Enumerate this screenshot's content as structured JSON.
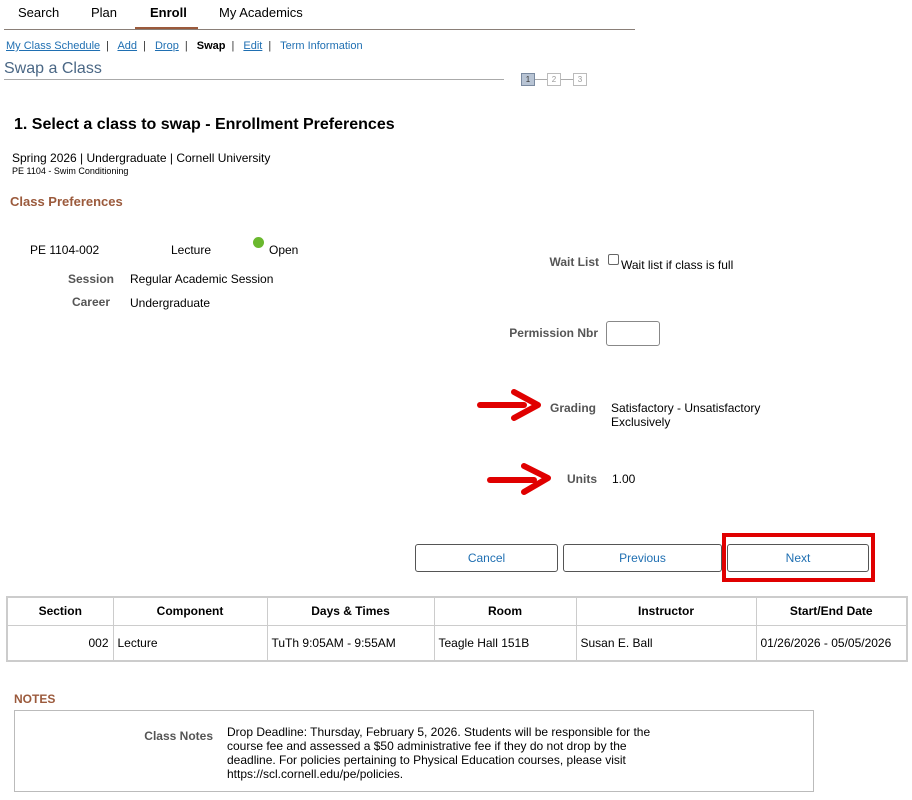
{
  "tabs": [
    {
      "label": "Search"
    },
    {
      "label": "Plan"
    },
    {
      "label": "Enroll",
      "active": true
    },
    {
      "label": "My Academics"
    }
  ],
  "subnav": [
    "My Class Schedule",
    "Add",
    "Drop",
    "Swap",
    "Edit",
    "Term Information"
  ],
  "page_title": "Swap a Class",
  "steps": [
    "1",
    "2",
    "3"
  ],
  "current_step": 1,
  "heading": "1.  Select a class to swap - Enrollment Preferences",
  "term_line": "Spring 2026 | Undergraduate | Cornell University",
  "course_line": "PE 1104 - Swim Conditioning",
  "class_prefs_title": "Class Preferences",
  "class": {
    "section": "PE 1104-002",
    "component": "Lecture",
    "status": "Open",
    "status_color": "#6ab82e",
    "session_label": "Session",
    "session": "Regular Academic Session",
    "career_label": "Career",
    "career": "Undergraduate"
  },
  "prefs": {
    "waitlist_label": "Wait List",
    "waitlist_checkbox": "Wait list if class is full",
    "waitlist_checked": false,
    "permission_label": "Permission Nbr",
    "permission_value": "",
    "grading_label": "Grading",
    "grading_line1": "Satisfactory - Unsatisfactory",
    "grading_line2": "Exclusively",
    "units_label": "Units",
    "units": "1.00"
  },
  "buttons": {
    "cancel": "Cancel",
    "previous": "Previous",
    "next": "Next"
  },
  "table": {
    "headers": [
      "Section",
      "Component",
      "Days & Times",
      "Room",
      "Instructor",
      "Start/End Date"
    ],
    "rows": [
      [
        "002",
        "Lecture",
        "TuTh 9:05AM - 9:55AM",
        "Teagle Hall 151B",
        "Susan E. Ball",
        "01/26/2026 - 05/05/2026"
      ]
    ]
  },
  "notes": {
    "title": "NOTES",
    "label": "Class Notes",
    "lines": [
      "Drop Deadline: Thursday, February 5, 2026. Students will be responsible for the",
      "course fee and assessed a $50 administrative fee if they do not drop by the",
      "deadline. For policies pertaining to Physical Education courses, please visit",
      "https://scl.cornell.edu/pe/policies."
    ]
  },
  "annotation_color": "#e00000"
}
